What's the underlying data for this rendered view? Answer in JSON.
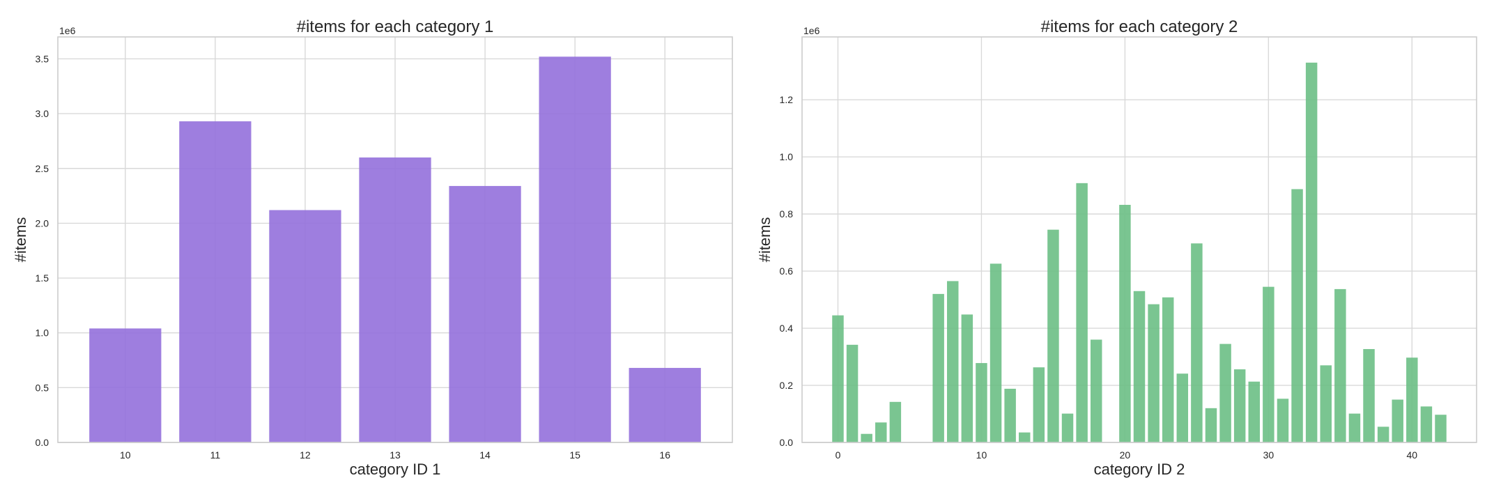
{
  "chart_data": [
    {
      "type": "bar",
      "title": "#items for each category 1",
      "xlabel": "category ID 1",
      "ylabel": "#items",
      "y_offset_label": "1e6",
      "color": "#9370DB",
      "categories": [
        10,
        11,
        12,
        13,
        14,
        15,
        16
      ],
      "values": [
        1040000,
        2930000,
        2120000,
        2600000,
        2340000,
        3520000,
        680000
      ],
      "xlim": [
        9.25,
        16.75
      ],
      "ylim": [
        0,
        3700000
      ],
      "yticks": [
        0,
        500000,
        1000000,
        1500000,
        2000000,
        2500000,
        3000000,
        3500000
      ],
      "ytick_labels": [
        "0.0",
        "0.5",
        "1.0",
        "1.5",
        "2.0",
        "2.5",
        "3.0",
        "3.5"
      ],
      "xticks": [
        10,
        11,
        12,
        13,
        14,
        15,
        16
      ],
      "xtick_labels": [
        "10",
        "11",
        "12",
        "13",
        "14",
        "15",
        "16"
      ],
      "grid": true
    },
    {
      "type": "bar",
      "title": "#items for each category 2",
      "xlabel": "category ID 2",
      "ylabel": "#items",
      "y_offset_label": "1e6",
      "color": "#6BBF85",
      "categories": [
        0,
        1,
        2,
        3,
        4,
        7,
        8,
        9,
        10,
        11,
        12,
        13,
        14,
        15,
        16,
        17,
        18,
        20,
        21,
        22,
        23,
        24,
        25,
        26,
        27,
        28,
        29,
        30,
        31,
        32,
        33,
        34,
        35,
        36,
        37,
        38,
        39,
        40,
        41,
        42
      ],
      "values": [
        445000,
        342000,
        30000,
        70000,
        142000,
        520000,
        565000,
        448000,
        278000,
        626000,
        188000,
        35000,
        263000,
        745000,
        101000,
        908000,
        360000,
        832000,
        530000,
        484000,
        508000,
        241000,
        697000,
        120000,
        345000,
        256000,
        213000,
        545000,
        153000,
        887000,
        1330000,
        270000,
        537000,
        101000,
        327000,
        55000,
        150000,
        297000,
        126000,
        97000
      ],
      "xlim": [
        -2.5,
        44.5
      ],
      "ylim": [
        0,
        1420000
      ],
      "yticks": [
        0,
        200000,
        400000,
        600000,
        800000,
        1000000,
        1200000
      ],
      "ytick_labels": [
        "0.0",
        "0.2",
        "0.4",
        "0.6",
        "0.8",
        "1.0",
        "1.2"
      ],
      "xticks": [
        0,
        10,
        20,
        30,
        40
      ],
      "xtick_labels": [
        "0",
        "10",
        "20",
        "30",
        "40"
      ],
      "grid": true
    }
  ]
}
